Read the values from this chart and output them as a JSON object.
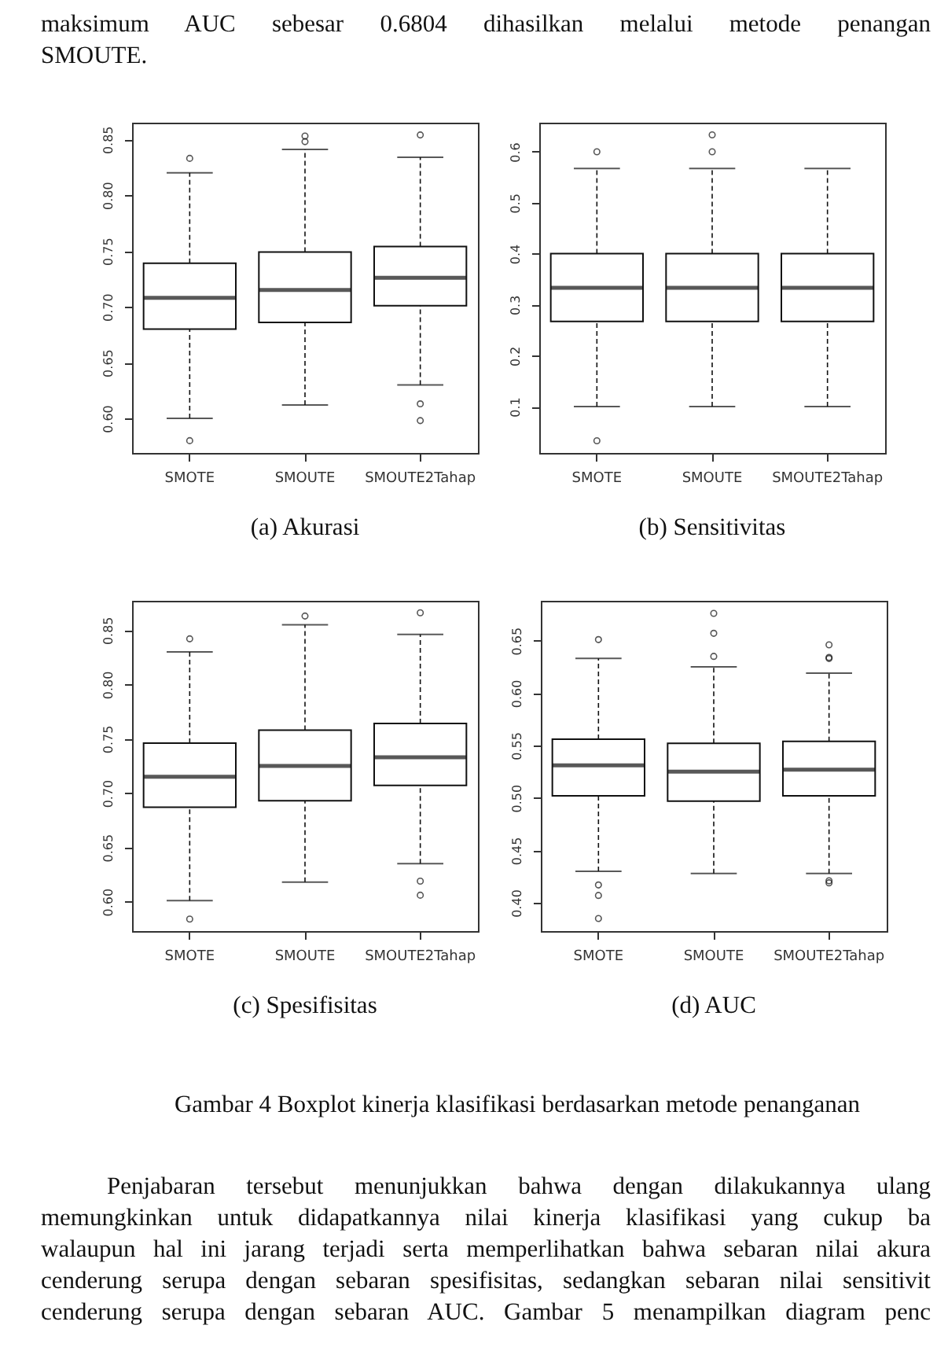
{
  "chart_data": [
    {
      "type": "box",
      "title": "(a)  Akurasi",
      "annotations": [
        "maksimum AUC sebesar 0.6804 dihasilkan melalui metode penangan",
        "SMOUTE."
      ],
      "categories": [
        "SMOTE",
        "SMOUTE",
        "SMOUTE2Tahap"
      ],
      "ylim": [
        0.569,
        0.865
      ],
      "yticks": [
        {
          "value": 0.6,
          "label": "0.60"
        },
        {
          "value": 0.65,
          "label": "0.65"
        },
        {
          "value": 0.7,
          "label": "0.70"
        },
        {
          "value": 0.75,
          "label": "0.75"
        },
        {
          "value": 0.8,
          "label": "0.80"
        },
        {
          "value": 0.85,
          "label": "0.85"
        }
      ],
      "boxes": [
        {
          "low": 0.6,
          "q1": 0.68,
          "median": 0.708,
          "q3": 0.739,
          "high": 0.82,
          "outliers": [
            0.833,
            0.58
          ]
        },
        {
          "low": 0.612,
          "q1": 0.686,
          "median": 0.715,
          "q3": 0.749,
          "high": 0.841,
          "outliers": [
            0.853,
            0.848
          ]
        },
        {
          "low": 0.63,
          "q1": 0.701,
          "median": 0.726,
          "q3": 0.754,
          "high": 0.834,
          "outliers": [
            0.854,
            0.613,
            0.598
          ]
        }
      ]
    },
    {
      "type": "box",
      "title": "(b) Sensitivitas",
      "categories": [
        "SMOTE",
        "SMOUTE",
        "SMOUTE2Tahap"
      ],
      "ylim": [
        0.009,
        0.657
      ],
      "yticks": [
        0.1,
        0.2,
        0.3,
        0.4,
        0.5,
        0.6
      ],
      "boxes": [
        {
          "low": 0.1,
          "q1": 0.267,
          "median": 0.333,
          "q3": 0.4,
          "high": 0.567,
          "outliers": [
            0.6,
            0.033
          ]
        },
        {
          "low": 0.1,
          "q1": 0.267,
          "median": 0.333,
          "q3": 0.4,
          "high": 0.567,
          "outliers": [
            0.6,
            0.633
          ]
        },
        {
          "low": 0.1,
          "q1": 0.267,
          "median": 0.333,
          "q3": 0.4,
          "high": 0.567
        }
      ]
    },
    {
      "type": "box",
      "title": "(c)  Spesifisitas",
      "categories": [
        "SMOTE",
        "SMOUTE",
        "SMOUTE2Tahap"
      ],
      "ylim": [
        0.573,
        0.877
      ],
      "yticks": [
        {
          "value": 0.6,
          "label": "0.60"
        },
        {
          "value": 0.65,
          "label": "0.65"
        },
        {
          "value": 0.7,
          "label": "0.70"
        },
        {
          "value": 0.75,
          "label": "0.75"
        },
        {
          "value": 0.8,
          "label": "0.80"
        },
        {
          "value": 0.85,
          "label": "0.85"
        }
      ],
      "boxes": [
        {
          "low": 0.601,
          "q1": 0.687,
          "median": 0.715,
          "q3": 0.746,
          "high": 0.83,
          "outliers": [
            0.842,
            0.584
          ]
        },
        {
          "low": 0.618,
          "q1": 0.693,
          "median": 0.725,
          "q3": 0.758,
          "high": 0.855,
          "outliers": [
            0.863
          ]
        },
        {
          "low": 0.635,
          "q1": 0.707,
          "median": 0.733,
          "q3": 0.764,
          "high": 0.846,
          "outliers": [
            0.866,
            0.619,
            0.606
          ]
        }
      ]
    },
    {
      "type": "box",
      "title": "(d) AUC",
      "annotations": [
        "Gambar 4  Boxplot kinerja klasifikasi berdasarkan metode penanganan",
        "Penjabaran tersebut menunjukkan bahwa dengan dilakukannya ulang",
        "memungkinkan untuk didapatkannya nilai kinerja klasifikasi yang cukup ba",
        "walaupun hal ini jarang terjadi serta memperlihatkan bahwa sebaran nilai akura",
        "cenderung serupa dengan sebaran spesifisitas, sedangkan sebaran nilai sensitivit",
        "cenderung serupa dengan sebaran AUC. Gambar 5 menampilkan diagram penc"
      ],
      "categories": [
        "SMOTE",
        "SMOUTE",
        "SMOUTE2Tahap"
      ],
      "ylim": [
        0.373,
        0.688
      ],
      "yticks": [
        {
          "value": 0.4,
          "label": "0.40"
        },
        {
          "value": 0.45,
          "label": "0.45"
        },
        {
          "value": 0.5,
          "label": "0.50"
        },
        {
          "value": 0.55,
          "label": "0.55"
        },
        {
          "value": 0.6,
          "label": "0.60"
        },
        {
          "value": 0.65,
          "label": "0.65"
        }
      ],
      "boxes": [
        {
          "low": 0.43,
          "q1": 0.502,
          "median": 0.531,
          "q3": 0.556,
          "high": 0.633,
          "outliers": [
            0.651,
            0.417,
            0.407,
            0.385
          ]
        },
        {
          "low": 0.428,
          "q1": 0.497,
          "median": 0.525,
          "q3": 0.552,
          "high": 0.625,
          "outliers": [
            0.676,
            0.657,
            0.635
          ]
        },
        {
          "low": 0.428,
          "q1": 0.502,
          "median": 0.527,
          "q3": 0.554,
          "high": 0.619,
          "outliers": [
            0.646,
            0.634,
            0.633,
            0.421,
            0.419
          ]
        }
      ]
    }
  ]
}
